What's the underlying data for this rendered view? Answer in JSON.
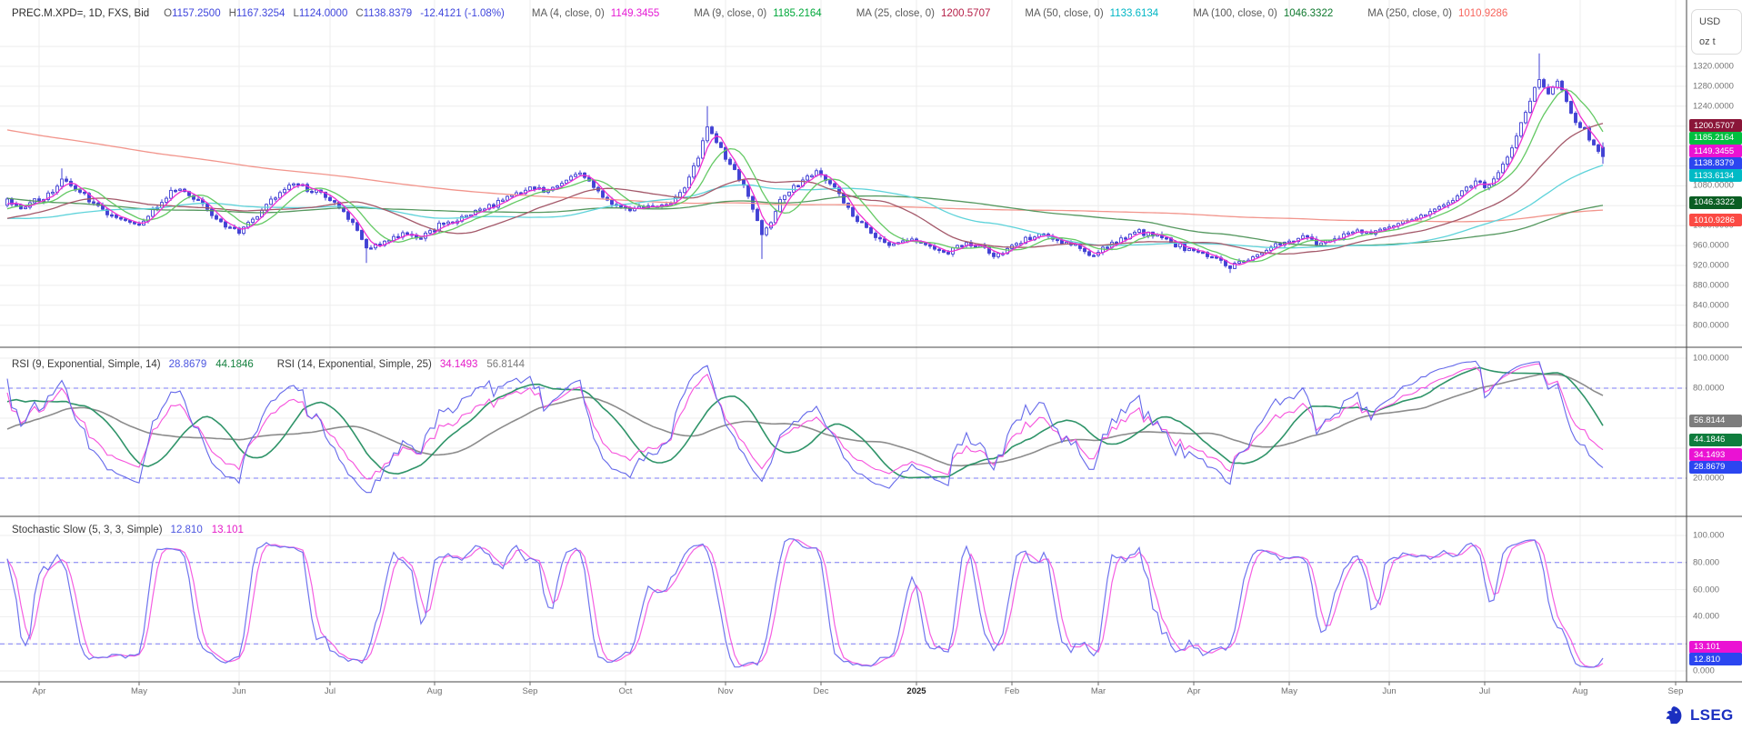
{
  "header": {
    "symbol_line": "PREC.M.XPD=, 1D, FXS, Bid",
    "ohlc": [
      {
        "label": "O",
        "value": "1157.2500"
      },
      {
        "label": "H",
        "value": "1167.3254"
      },
      {
        "label": "L",
        "value": "1124.0000"
      },
      {
        "label": "C",
        "value": "1138.8379"
      }
    ],
    "change": "-12.4121 (-1.08%)",
    "ohlc_value_color": "#3f46dc",
    "ma_legend": [
      {
        "label": "MA (4, close, 0)",
        "value": "1149.3455",
        "color": "#e51bd4"
      },
      {
        "label": "MA (9, close, 0)",
        "value": "1185.2164",
        "color": "#00a83a"
      },
      {
        "label": "MA (25, close, 0)",
        "value": "1200.5707",
        "color": "#b51f47"
      },
      {
        "label": "MA (50, close, 0)",
        "value": "1133.6134",
        "color": "#00b6c4"
      },
      {
        "label": "MA (100, close, 0)",
        "value": "1046.3322",
        "color": "#117a30"
      },
      {
        "label": "MA (250, close, 0)",
        "value": "1010.9286",
        "color": "#f7645c"
      }
    ]
  },
  "rsi_header": {
    "label1": "RSI (9, Exponential, Simple, 14)",
    "value1a": "28.8679",
    "value1a_color": "#4b55e0",
    "value1b": "44.1846",
    "value1b_color": "#15813f",
    "label2": "RSI (14, Exponential, Simple, 25)",
    "value2a": "34.1493",
    "value2a_color": "#e51bc8",
    "value2b": "56.8144",
    "value2b_color": "#7a7a7a"
  },
  "stoch_header": {
    "label": "Stochastic Slow (5, 3, 3, Simple)",
    "value_k": "12.810",
    "value_k_color": "#4b55e0",
    "value_d": "13.101",
    "value_d_color": "#e51bc8"
  },
  "unit_box": {
    "currency": "USD",
    "unit": "oz t"
  },
  "logo": {
    "text": "LSEG"
  },
  "axes": {
    "main_ticks": [
      {
        "text": "1320.0000",
        "value": 1320
      },
      {
        "text": "1280.0000",
        "value": 1280
      },
      {
        "text": "1240.0000",
        "value": 1240
      },
      {
        "text": "1080.0000",
        "value": 1080
      },
      {
        "text": "1000.0000",
        "value": 1000
      },
      {
        "text": "960.0000",
        "value": 960
      },
      {
        "text": "920.0000",
        "value": 920
      },
      {
        "text": "880.0000",
        "value": 880
      },
      {
        "text": "840.0000",
        "value": 840
      },
      {
        "text": "800.0000",
        "value": 800
      }
    ],
    "main_badges": [
      {
        "text": "1200.5707",
        "value": 1200.5707,
        "bg": "#8a1538"
      },
      {
        "text": "1185.2164",
        "value": 1185.2164,
        "bg": "#00bf3f"
      },
      {
        "text": "1149.3455",
        "value": 1149.3455,
        "bg": "#ea12d3"
      },
      {
        "text": "1138.8379",
        "value": 1138.8379,
        "bg": "#2b46f0"
      },
      {
        "text": "1133.6134",
        "value": 1133.6134,
        "bg": "#00bac6"
      },
      {
        "text": "1046.3322",
        "value": 1046.3322,
        "bg": "#0b5e23"
      },
      {
        "text": "1010.9286",
        "value": 1010.9286,
        "bg": "#fb4a44"
      }
    ],
    "rsi_ticks": [
      {
        "text": "100.0000",
        "value": 100
      },
      {
        "text": "80.0000",
        "value": 80
      },
      {
        "text": "60.0000",
        "value": 60
      },
      {
        "text": "20.0000",
        "value": 20
      }
    ],
    "rsi_badges": [
      {
        "text": "56.8144",
        "value": 56.8144,
        "bg": "#7d7d7d"
      },
      {
        "text": "44.1846",
        "value": 44.1846,
        "bg": "#0f7d3d"
      },
      {
        "text": "34.1493",
        "value": 34.1493,
        "bg": "#ea12d3"
      },
      {
        "text": "28.8679",
        "value": 28.8679,
        "bg": "#2b46f0"
      }
    ],
    "stoch_ticks": [
      {
        "text": "100.000",
        "value": 100
      },
      {
        "text": "80.000",
        "value": 80
      },
      {
        "text": "60.000",
        "value": 60
      },
      {
        "text": "40.000",
        "value": 40
      },
      {
        "text": "0.000",
        "value": 0
      }
    ],
    "stoch_badges": [
      {
        "text": "13.101",
        "value": 13.101,
        "bg": "#ea12d3"
      },
      {
        "text": "12.810",
        "value": 12.81,
        "bg": "#2b46f0"
      }
    ],
    "months": [
      {
        "label": "Apr",
        "day": 0
      },
      {
        "label": "May",
        "day": 22
      },
      {
        "label": "Jun",
        "day": 44
      },
      {
        "label": "Jul",
        "day": 64
      },
      {
        "label": "Aug",
        "day": 87
      },
      {
        "label": "Sep",
        "day": 108
      },
      {
        "label": "Oct",
        "day": 129
      },
      {
        "label": "Nov",
        "day": 151
      },
      {
        "label": "Dec",
        "day": 172
      },
      {
        "label": "2025",
        "day": 193
      },
      {
        "label": "Feb",
        "day": 214
      },
      {
        "label": "Mar",
        "day": 233
      },
      {
        "label": "Apr",
        "day": 254
      },
      {
        "label": "May",
        "day": 275
      },
      {
        "label": "Jun",
        "day": 297
      },
      {
        "label": "Jul",
        "day": 318
      },
      {
        "label": "Aug",
        "day": 339
      },
      {
        "label": "Sep",
        "day": 360
      }
    ]
  },
  "colors": {
    "candle": "#4242d4",
    "candle_up_fill": "#ffffff",
    "ma4": "#ee2fd2",
    "ma9": "#64c964",
    "ma25": "#a4596a",
    "ma50": "#5ed3da",
    "ma100": "#55985f",
    "ma250": "#f2958c",
    "rsi9": "#6468ea",
    "rsi9_ma": "#2f9469",
    "rsi14": "#f653dd",
    "rsi14_ma": "#8c8c8c",
    "stoch_k": "#6f74ee",
    "stoch_d": "#f55fe2",
    "threshold": "#7b7bf5",
    "grid": "#ededed",
    "axis": "#474747"
  },
  "chart_data": {
    "type": "candlestick",
    "title": "PREC.M.XPD=, 1D, FXS, Bid",
    "instrument": "PREC.M.XPD=",
    "interval": "1D",
    "source": "FXS",
    "price_basis": "Bid",
    "unit": "USD / oz t",
    "last": {
      "open": 1157.25,
      "high": 1167.3254,
      "low": 1124.0,
      "close": 1138.8379,
      "change": -12.4121,
      "change_pct": -1.08
    },
    "price_axis": {
      "min": 800,
      "max": 1320,
      "step": 40
    },
    "indicators": {
      "moving_averages": [
        {
          "period": 4,
          "applied_to": "close",
          "value": 1149.3455
        },
        {
          "period": 9,
          "applied_to": "close",
          "value": 1185.2164
        },
        {
          "period": 25,
          "applied_to": "close",
          "value": 1200.5707
        },
        {
          "period": 50,
          "applied_to": "close",
          "value": 1133.6134
        },
        {
          "period": 100,
          "applied_to": "close",
          "value": 1046.3322
        },
        {
          "period": 250,
          "applied_to": "close",
          "value": 1010.9286
        }
      ],
      "rsi": [
        {
          "period": 9,
          "mode": "Exponential",
          "ma_type": "Simple",
          "ma_period": 14,
          "value": 28.8679,
          "ma_value": 44.1846
        },
        {
          "period": 14,
          "mode": "Exponential",
          "ma_type": "Simple",
          "ma_period": 25,
          "value": 34.1493,
          "ma_value": 56.8144
        }
      ],
      "stochastic_slow": {
        "k_period": 5,
        "k_smooth": 3,
        "d_period": 3,
        "ma_type": "Simple",
        "k": 12.81,
        "d": 13.101
      },
      "rsi_thresholds": [
        20,
        80
      ],
      "stoch_thresholds": [
        20,
        80
      ],
      "rsi_axis": {
        "min": 0,
        "max": 100
      },
      "stoch_axis": {
        "min": 0,
        "max": 100
      }
    },
    "prehistory_keypoints": [
      [
        -280,
        1460
      ],
      [
        -250,
        1420
      ],
      [
        -220,
        1360
      ],
      [
        -190,
        1300
      ],
      [
        -160,
        1240
      ],
      [
        -130,
        1180
      ],
      [
        -100,
        1130
      ],
      [
        -70,
        1075
      ],
      [
        -50,
        1030
      ],
      [
        -35,
        990
      ],
      [
        -20,
        1005
      ],
      [
        -12,
        1030
      ]
    ],
    "price_keypoints": [
      [
        -7,
        1048
      ],
      [
        -4,
        1038
      ],
      [
        0,
        1052
      ],
      [
        3,
        1068
      ],
      [
        5,
        1092
      ],
      [
        7,
        1078
      ],
      [
        10,
        1060
      ],
      [
        14,
        1030
      ],
      [
        18,
        1012
      ],
      [
        22,
        1000
      ],
      [
        26,
        1040
      ],
      [
        30,
        1075
      ],
      [
        33,
        1060
      ],
      [
        36,
        1045
      ],
      [
        40,
        1005
      ],
      [
        44,
        988
      ],
      [
        48,
        1015
      ],
      [
        52,
        1060
      ],
      [
        56,
        1085
      ],
      [
        60,
        1070
      ],
      [
        64,
        1055
      ],
      [
        68,
        1018
      ],
      [
        72,
        955
      ],
      [
        76,
        965
      ],
      [
        80,
        988
      ],
      [
        84,
        975
      ],
      [
        88,
        1000
      ],
      [
        92,
        1012
      ],
      [
        96,
        1030
      ],
      [
        100,
        1042
      ],
      [
        104,
        1060
      ],
      [
        108,
        1080
      ],
      [
        112,
        1068
      ],
      [
        116,
        1092
      ],
      [
        119,
        1105
      ],
      [
        122,
        1075
      ],
      [
        126,
        1048
      ],
      [
        130,
        1035
      ],
      [
        134,
        1042
      ],
      [
        138,
        1038
      ],
      [
        142,
        1075
      ],
      [
        145,
        1140
      ],
      [
        147,
        1194
      ],
      [
        149,
        1165
      ],
      [
        152,
        1125
      ],
      [
        155,
        1080
      ],
      [
        157,
        1030
      ],
      [
        159,
        985
      ],
      [
        161,
        1005
      ],
      [
        163,
        1050
      ],
      [
        166,
        1078
      ],
      [
        169,
        1095
      ],
      [
        171,
        1110
      ],
      [
        174,
        1085
      ],
      [
        177,
        1050
      ],
      [
        180,
        1010
      ],
      [
        184,
        975
      ],
      [
        188,
        962
      ],
      [
        192,
        972
      ],
      [
        196,
        958
      ],
      [
        200,
        948
      ],
      [
        204,
        962
      ],
      [
        208,
        955
      ],
      [
        210,
        940
      ],
      [
        213,
        952
      ],
      [
        216,
        968
      ],
      [
        220,
        985
      ],
      [
        224,
        972
      ],
      [
        228,
        960
      ],
      [
        231,
        935
      ],
      [
        234,
        955
      ],
      [
        238,
        975
      ],
      [
        242,
        988
      ],
      [
        246,
        978
      ],
      [
        250,
        962
      ],
      [
        254,
        948
      ],
      [
        258,
        940
      ],
      [
        262,
        918
      ],
      [
        266,
        930
      ],
      [
        270,
        955
      ],
      [
        274,
        968
      ],
      [
        278,
        975
      ],
      [
        282,
        962
      ],
      [
        286,
        978
      ],
      [
        290,
        992
      ],
      [
        294,
        985
      ],
      [
        298,
        998
      ],
      [
        302,
        1012
      ],
      [
        306,
        1032
      ],
      [
        310,
        1048
      ],
      [
        313,
        1070
      ],
      [
        316,
        1092
      ],
      [
        318,
        1078
      ],
      [
        320,
        1095
      ],
      [
        322,
        1120
      ],
      [
        324,
        1160
      ],
      [
        326,
        1208
      ],
      [
        328,
        1255
      ],
      [
        330,
        1295
      ],
      [
        332,
        1270
      ],
      [
        334,
        1288
      ],
      [
        336,
        1248
      ],
      [
        338,
        1212
      ],
      [
        340,
        1192
      ],
      [
        341,
        1174
      ],
      [
        342,
        1160
      ],
      [
        343,
        1150
      ],
      [
        344,
        1138.8379
      ]
    ],
    "wick_overrides": [
      {
        "day": 5,
        "high": 1115
      },
      {
        "day": 72,
        "low": 925
      },
      {
        "day": 147,
        "high": 1240
      },
      {
        "day": 159,
        "low": 933
      },
      {
        "day": 262,
        "low": 905
      },
      {
        "day": 330,
        "high": 1346
      },
      {
        "day": 344,
        "high": 1167.3254,
        "low": 1124.0
      }
    ]
  }
}
